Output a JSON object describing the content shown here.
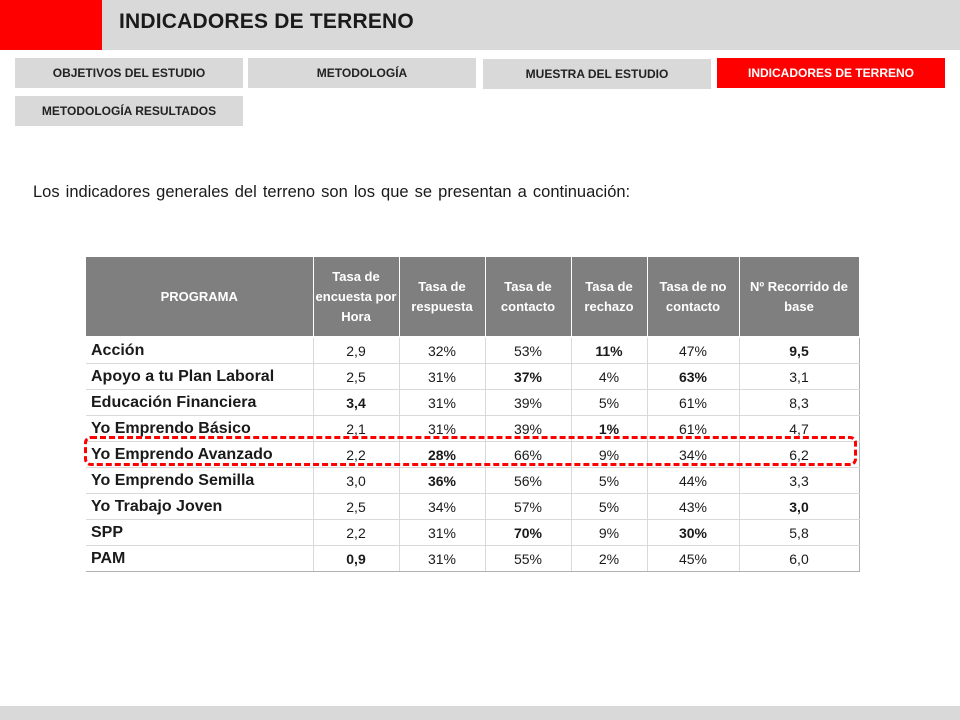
{
  "header": {
    "title": "INDICADORES DE TERRENO"
  },
  "nav": {
    "tabs": [
      {
        "label": "OBJETIVOS DEL ESTUDIO"
      },
      {
        "label": "METODOLOGÍA"
      },
      {
        "label": "MUESTRA DEL ESTUDIO"
      },
      {
        "label": "INDICADORES DE TERRENO",
        "active": true
      },
      {
        "label": "METODOLOGÍA RESULTADOS"
      }
    ]
  },
  "intro": "Los indicadores generales del terreno son los que se presentan a continuación:",
  "colors": {
    "accent": "#ff0000",
    "positive": "#00b050",
    "header_bg": "#7f7f7f",
    "bar_bg": "#d9d9d9"
  },
  "table": {
    "headers": [
      "PROGRAMA",
      "Tasa de encuesta por Hora",
      "Tasa de respuesta",
      "Tasa de contacto",
      "Tasa de rechazo",
      "Tasa de no contacto",
      "Nº Recorrido de base"
    ],
    "rows": [
      {
        "name": "Acción",
        "values": [
          "2,9",
          "32%",
          "53%",
          "11%",
          "47%",
          "9,5"
        ],
        "colors": [
          "",
          "",
          "",
          "red",
          "",
          "red"
        ]
      },
      {
        "name": "Apoyo a tu Plan Laboral",
        "values": [
          "2,5",
          "31%",
          "37%",
          "4%",
          "63%",
          "3,1"
        ],
        "colors": [
          "",
          "",
          "red",
          "",
          "red",
          ""
        ]
      },
      {
        "name": "Educación Financiera",
        "values": [
          "3,4",
          "31%",
          "39%",
          "5%",
          "61%",
          "8,3"
        ],
        "colors": [
          "green",
          "",
          "",
          "",
          "",
          ""
        ]
      },
      {
        "name": "Yo Emprendo Básico",
        "values": [
          "2,1",
          "31%",
          "39%",
          "1%",
          "61%",
          "4,7"
        ],
        "colors": [
          "",
          "",
          "",
          "green",
          "",
          ""
        ]
      },
      {
        "name": "Yo Emprendo Avanzado",
        "values": [
          "2,2",
          "28%",
          "66%",
          "9%",
          "34%",
          "6,2"
        ],
        "colors": [
          "",
          "red",
          "",
          "",
          "",
          ""
        ],
        "highlighted": true
      },
      {
        "name": "Yo Emprendo Semilla",
        "values": [
          "3,0",
          "36%",
          "56%",
          "5%",
          "44%",
          "3,3"
        ],
        "colors": [
          "",
          "green",
          "",
          "",
          "",
          ""
        ]
      },
      {
        "name": "Yo Trabajo Joven",
        "values": [
          "2,5",
          "34%",
          "57%",
          "5%",
          "43%",
          "3,0"
        ],
        "colors": [
          "",
          "",
          "",
          "",
          "",
          "green"
        ]
      },
      {
        "name": "SPP",
        "values": [
          "2,2",
          "31%",
          "70%",
          "9%",
          "30%",
          "5,8"
        ],
        "colors": [
          "",
          "",
          "green",
          "",
          "green",
          ""
        ]
      },
      {
        "name": "PAM",
        "values": [
          "0,9",
          "31%",
          "55%",
          "2%",
          "45%",
          "6,0"
        ],
        "colors": [
          "red",
          "",
          "",
          "",
          "",
          ""
        ]
      }
    ]
  }
}
